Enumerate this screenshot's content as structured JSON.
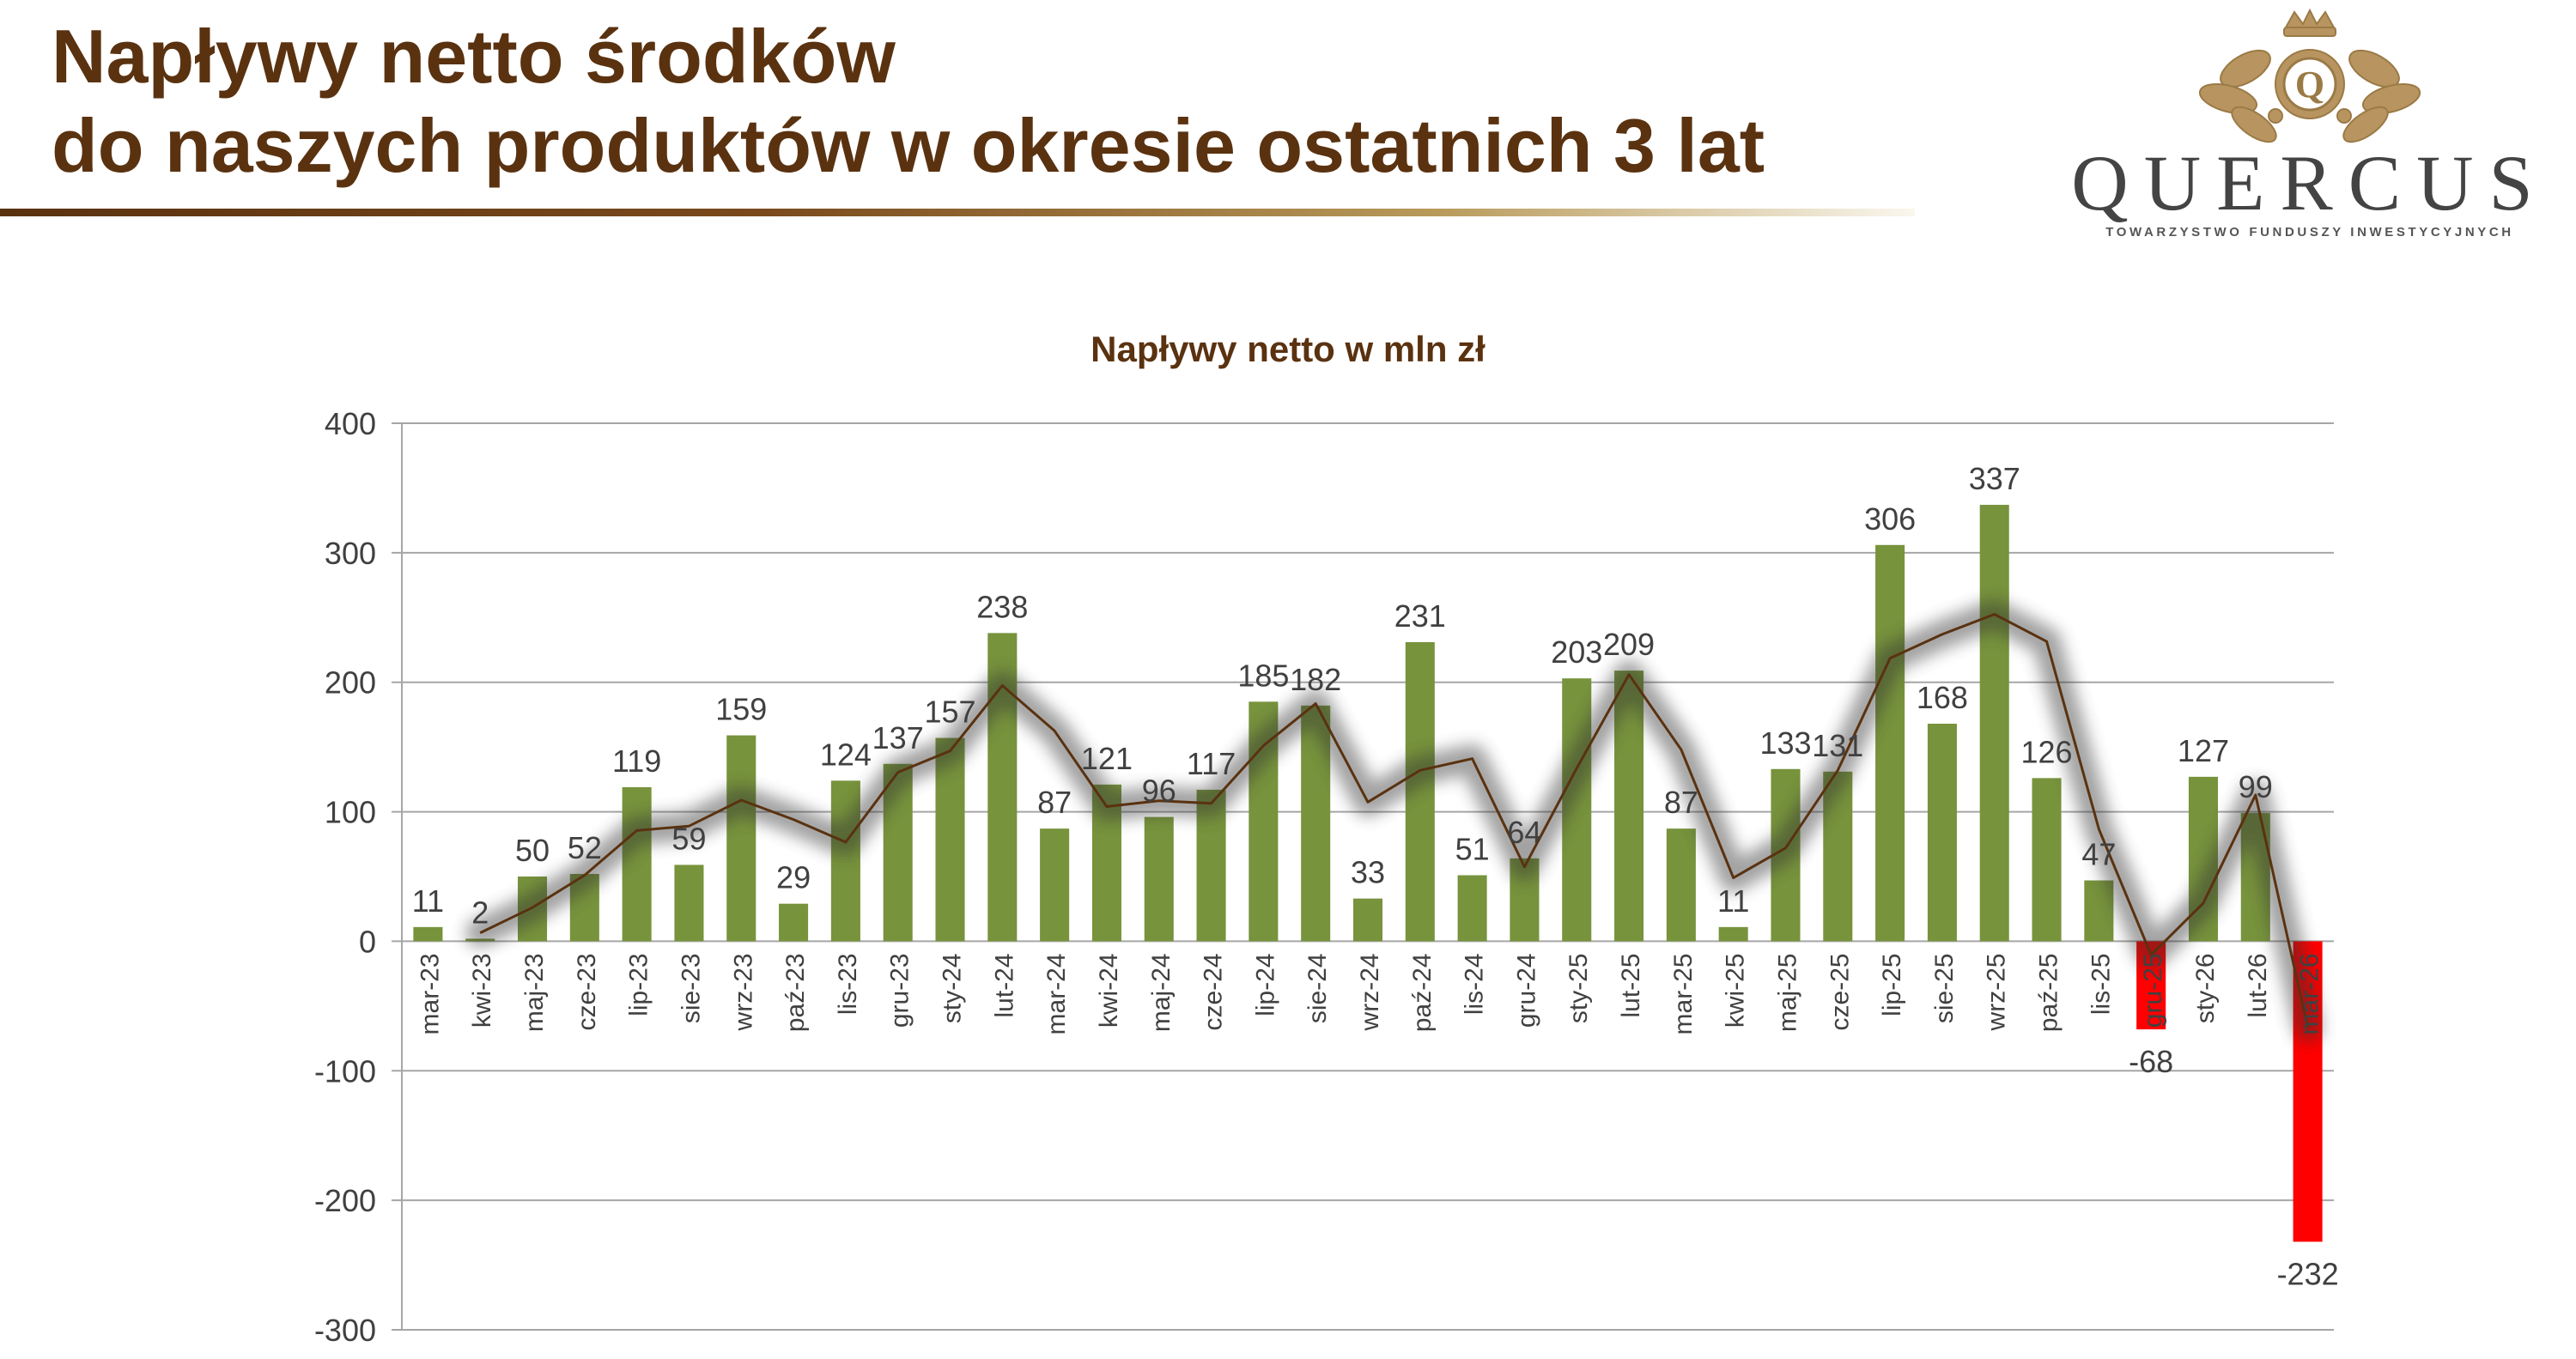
{
  "header": {
    "title_line1": "Napływy netto środków",
    "title_line2": "do naszych produktów w okresie ostatnich 3 lat"
  },
  "logo": {
    "name": "QUERCUS",
    "subtitle": "TOWARZYSTWO FUNDUSZY INWESTYCYJNYCH",
    "emblem_letter": "Q",
    "icon": "crowned-oak-crest-icon",
    "color": "#b89560"
  },
  "chart_data": {
    "type": "bar",
    "title": "Napływy netto w mln zł",
    "xlabel": "",
    "ylabel": "",
    "ylim": [
      -300,
      400
    ],
    "yticks": [
      400,
      300,
      200,
      100,
      0,
      -100,
      -200,
      -300
    ],
    "grid": true,
    "categories": [
      "mar-23",
      "kwi-23",
      "maj-23",
      "cze-23",
      "lip-23",
      "sie-23",
      "wrz-23",
      "paź-23",
      "lis-23",
      "gru-23",
      "sty-24",
      "lut-24",
      "mar-24",
      "kwi-24",
      "maj-24",
      "cze-24",
      "lip-24",
      "sie-24",
      "wrz-24",
      "paź-24",
      "lis-24",
      "gru-24",
      "sty-25",
      "lut-25",
      "mar-25",
      "kwi-25",
      "maj-25",
      "cze-25",
      "lip-25",
      "sie-25",
      "wrz-25",
      "paź-25",
      "lis-25",
      "gru-25",
      "sty-26",
      "lut-26",
      "mar-26"
    ],
    "values": [
      11,
      2,
      50,
      52,
      119,
      59,
      159,
      29,
      124,
      137,
      157,
      238,
      87,
      121,
      96,
      117,
      185,
      182,
      33,
      231,
      51,
      64,
      203,
      209,
      87,
      11,
      133,
      131,
      306,
      168,
      337,
      126,
      47,
      -68,
      127,
      99,
      -232
    ],
    "colors": {
      "positive": "#77933c",
      "negative": "#ff0000",
      "trend": "#5a3210",
      "grid": "#a6a6a6",
      "text": "#404040",
      "title": "#5a3210"
    }
  }
}
